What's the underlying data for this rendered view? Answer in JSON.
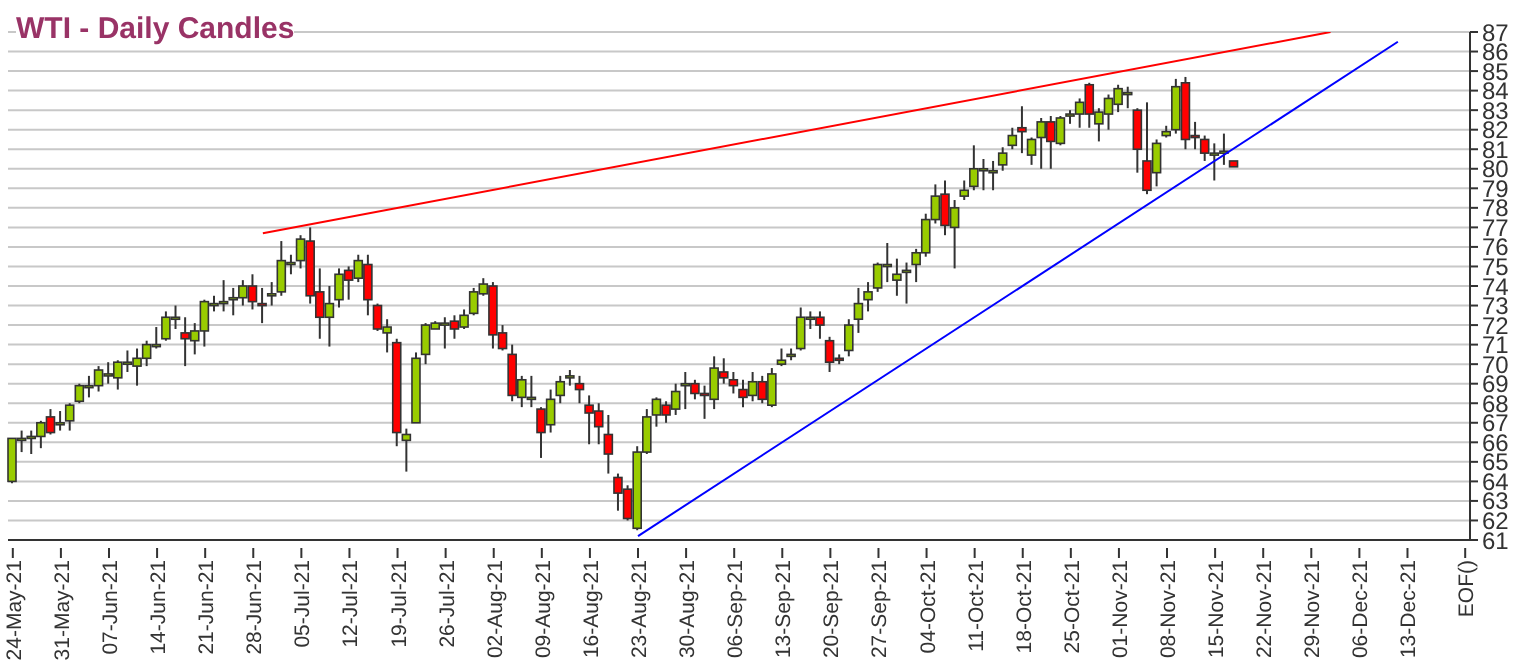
{
  "chart_data": {
    "type": "candlestick",
    "title": "WTI - Daily Candles",
    "categories": [
      "24-May-21",
      null,
      null,
      null,
      null,
      "31-May-21",
      null,
      null,
      null,
      null,
      "07-Jun-21",
      null,
      null,
      null,
      null,
      "14-Jun-21",
      null,
      null,
      null,
      null,
      "21-Jun-21",
      null,
      null,
      null,
      null,
      "28-Jun-21",
      null,
      null,
      null,
      null,
      "05-Jul-21",
      null,
      null,
      null,
      null,
      "12-Jul-21",
      null,
      null,
      null,
      null,
      "19-Jul-21",
      null,
      null,
      null,
      null,
      "26-Jul-21",
      null,
      null,
      null,
      null,
      "02-Aug-21",
      null,
      null,
      null,
      null,
      "09-Aug-21",
      null,
      null,
      null,
      null,
      "16-Aug-21",
      null,
      null,
      null,
      null,
      "23-Aug-21",
      null,
      null,
      null,
      null,
      "30-Aug-21",
      null,
      null,
      null,
      null,
      "06-Sep-21",
      null,
      null,
      null,
      null,
      "13-Sep-21",
      null,
      null,
      null,
      null,
      "20-Sep-21",
      null,
      null,
      null,
      null,
      "27-Sep-21",
      null,
      null,
      null,
      null,
      "04-Oct-21",
      null,
      null,
      null,
      null,
      "11-Oct-21",
      null,
      null,
      null,
      null,
      "18-Oct-21",
      null,
      null,
      null,
      null,
      "25-Oct-21",
      null,
      null,
      null,
      null,
      "01-Nov-21",
      null,
      null,
      null,
      null,
      "08-Nov-21",
      null,
      null,
      null,
      null,
      "15-Nov-21",
      null,
      null,
      null,
      null,
      "22-Nov-21",
      null,
      null,
      null,
      null,
      "29-Nov-21",
      null,
      null,
      null,
      null,
      "06-Dec-21",
      null,
      null,
      null,
      null,
      "13-Dec-21",
      null,
      null,
      null,
      null,
      null,
      "EOF()"
    ],
    "ohlc": [
      [
        64.0,
        66.2,
        63.9,
        66.2
      ],
      [
        66.2,
        66.6,
        65.5,
        66.2
      ],
      [
        66.2,
        66.6,
        65.4,
        66.3
      ],
      [
        66.3,
        67.1,
        65.7,
        67.0
      ],
      [
        67.3,
        67.7,
        66.4,
        66.5
      ],
      [
        66.9,
        67.6,
        66.6,
        67.0
      ],
      [
        67.1,
        68.0,
        66.6,
        67.9
      ],
      [
        68.1,
        69.0,
        68.0,
        68.9
      ],
      [
        68.9,
        69.4,
        68.3,
        68.9
      ],
      [
        68.9,
        69.9,
        68.6,
        69.7
      ],
      [
        69.4,
        70.1,
        69.0,
        69.5
      ],
      [
        69.3,
        70.2,
        68.7,
        70.1
      ],
      [
        70.1,
        70.7,
        69.6,
        70.1
      ],
      [
        69.9,
        70.8,
        68.9,
        70.3
      ],
      [
        70.3,
        71.2,
        69.9,
        71.0
      ],
      [
        71.0,
        71.9,
        70.8,
        71.0
      ],
      [
        71.3,
        72.7,
        71.2,
        72.4
      ],
      [
        72.3,
        73.0,
        71.8,
        72.4
      ],
      [
        71.6,
        72.4,
        69.9,
        71.3
      ],
      [
        71.2,
        72.1,
        70.5,
        71.7
      ],
      [
        71.7,
        73.3,
        70.9,
        73.2
      ],
      [
        73.1,
        73.5,
        72.7,
        73.1
      ],
      [
        73.1,
        74.3,
        72.7,
        73.2
      ],
      [
        73.3,
        73.9,
        72.5,
        73.4
      ],
      [
        73.4,
        74.3,
        73.0,
        74.0
      ],
      [
        74.0,
        74.6,
        72.8,
        73.2
      ],
      [
        73.1,
        73.9,
        72.1,
        73.0
      ],
      [
        73.6,
        74.2,
        73.0,
        73.6
      ],
      [
        73.7,
        76.3,
        73.5,
        75.3
      ],
      [
        75.2,
        75.6,
        74.6,
        75.2
      ],
      [
        75.3,
        76.6,
        74.9,
        76.4
      ],
      [
        76.3,
        77.0,
        73.1,
        73.5
      ],
      [
        73.7,
        74.9,
        71.3,
        72.4
      ],
      [
        72.4,
        74.0,
        70.9,
        73.1
      ],
      [
        73.3,
        74.9,
        72.9,
        74.6
      ],
      [
        74.8,
        75.0,
        73.3,
        74.3
      ],
      [
        74.4,
        75.6,
        74.2,
        75.3
      ],
      [
        75.1,
        75.6,
        72.5,
        73.3
      ],
      [
        73.0,
        73.1,
        71.7,
        71.8
      ],
      [
        71.6,
        72.3,
        70.6,
        71.9
      ],
      [
        71.1,
        71.3,
        65.8,
        66.5
      ],
      [
        66.1,
        66.7,
        64.5,
        66.4
      ],
      [
        67.0,
        70.6,
        67.0,
        70.3
      ],
      [
        70.5,
        72.1,
        70.0,
        72.0
      ],
      [
        71.8,
        72.2,
        71.8,
        72.1
      ],
      [
        72.1,
        72.4,
        70.8,
        72.1
      ],
      [
        72.2,
        72.5,
        71.3,
        71.8
      ],
      [
        71.9,
        72.8,
        71.8,
        72.5
      ],
      [
        72.6,
        73.9,
        72.5,
        73.7
      ],
      [
        73.6,
        74.4,
        73.5,
        74.1
      ],
      [
        74.0,
        74.2,
        70.8,
        71.5
      ],
      [
        71.6,
        72.0,
        70.7,
        70.8
      ],
      [
        70.5,
        71.0,
        68.1,
        68.4
      ],
      [
        68.3,
        69.4,
        67.8,
        69.2
      ],
      [
        68.3,
        69.4,
        67.8,
        68.3
      ],
      [
        67.7,
        67.8,
        65.2,
        66.5
      ],
      [
        66.9,
        68.7,
        66.5,
        68.2
      ],
      [
        68.4,
        69.4,
        68.0,
        69.1
      ],
      [
        69.3,
        69.7,
        68.9,
        69.4
      ],
      [
        69.0,
        69.4,
        68.0,
        68.7
      ],
      [
        67.9,
        68.4,
        65.9,
        67.5
      ],
      [
        67.6,
        68.0,
        65.9,
        66.8
      ],
      [
        66.4,
        67.4,
        64.4,
        65.4
      ],
      [
        64.2,
        64.4,
        62.5,
        63.4
      ],
      [
        63.6,
        63.8,
        62.0,
        62.1
      ],
      [
        61.6,
        65.8,
        61.5,
        65.5
      ],
      [
        65.5,
        67.7,
        65.4,
        67.3
      ],
      [
        67.4,
        68.3,
        66.8,
        68.2
      ],
      [
        67.9,
        68.1,
        67.0,
        67.4
      ],
      [
        67.7,
        69.0,
        67.4,
        68.6
      ],
      [
        69.0,
        69.6,
        67.7,
        69.0
      ],
      [
        69.0,
        69.2,
        68.2,
        68.5
      ],
      [
        68.5,
        68.9,
        67.2,
        68.4
      ],
      [
        68.2,
        70.4,
        67.7,
        69.8
      ],
      [
        69.6,
        70.3,
        69.0,
        69.3
      ],
      [
        69.2,
        69.6,
        68.5,
        68.9
      ],
      [
        68.7,
        69.2,
        67.8,
        68.3
      ],
      [
        68.4,
        69.6,
        68.1,
        69.1
      ],
      [
        69.1,
        69.4,
        68.0,
        68.2
      ],
      [
        67.9,
        69.8,
        67.8,
        69.5
      ],
      [
        70.0,
        70.8,
        69.9,
        70.2
      ],
      [
        70.5,
        70.8,
        70.2,
        70.5
      ],
      [
        70.8,
        72.9,
        70.7,
        72.4
      ],
      [
        72.4,
        72.7,
        71.8,
        72.4
      ],
      [
        72.4,
        72.7,
        71.3,
        72.0
      ],
      [
        71.2,
        71.4,
        69.6,
        70.1
      ],
      [
        70.3,
        70.5,
        70.0,
        70.2
      ],
      [
        70.7,
        72.3,
        70.4,
        72.0
      ],
      [
        72.3,
        73.9,
        71.6,
        73.1
      ],
      [
        73.3,
        74.2,
        72.7,
        73.7
      ],
      [
        73.9,
        75.2,
        73.7,
        75.1
      ],
      [
        75.1,
        76.2,
        74.2,
        75.1
      ],
      [
        74.3,
        75.4,
        73.5,
        74.6
      ],
      [
        74.8,
        75.2,
        73.1,
        74.8
      ],
      [
        75.1,
        75.9,
        74.2,
        75.7
      ],
      [
        75.7,
        77.7,
        75.5,
        77.4
      ],
      [
        77.4,
        79.2,
        77.2,
        78.6
      ],
      [
        78.7,
        79.4,
        76.6,
        77.1
      ],
      [
        77.0,
        78.4,
        74.9,
        78.0
      ],
      [
        78.6,
        79.4,
        78.4,
        78.9
      ],
      [
        79.1,
        81.2,
        78.9,
        80.0
      ],
      [
        80.0,
        80.5,
        78.9,
        80.0
      ],
      [
        79.9,
        80.4,
        78.9,
        79.9
      ],
      [
        80.2,
        81.1,
        79.9,
        80.8
      ],
      [
        81.2,
        82.1,
        81.0,
        81.7
      ],
      [
        82.1,
        83.2,
        80.8,
        81.9
      ],
      [
        80.7,
        81.6,
        80.2,
        81.5
      ],
      [
        81.6,
        82.6,
        80.0,
        82.4
      ],
      [
        82.4,
        82.7,
        80.0,
        81.4
      ],
      [
        81.3,
        82.7,
        81.2,
        82.6
      ],
      [
        82.8,
        83.0,
        82.3,
        82.8
      ],
      [
        82.8,
        83.6,
        82.1,
        83.4
      ],
      [
        84.3,
        84.4,
        82.1,
        82.8
      ],
      [
        82.3,
        83.1,
        81.4,
        82.9
      ],
      [
        82.8,
        83.8,
        82.0,
        83.6
      ],
      [
        83.3,
        84.3,
        82.9,
        84.1
      ],
      [
        83.9,
        84.2,
        83.1,
        83.9
      ],
      [
        83.0,
        83.1,
        79.8,
        81.0
      ],
      [
        80.4,
        83.4,
        78.7,
        78.9
      ],
      [
        79.8,
        81.5,
        79.1,
        81.3
      ],
      [
        81.7,
        82.2,
        81.6,
        81.9
      ],
      [
        82.0,
        84.6,
        81.8,
        84.2
      ],
      [
        84.4,
        84.7,
        81.0,
        81.5
      ],
      [
        81.7,
        82.4,
        81.0,
        81.6
      ],
      [
        81.5,
        81.7,
        80.4,
        80.8
      ],
      [
        80.8,
        81.3,
        79.4,
        80.8
      ],
      [
        80.8,
        81.8,
        80.2,
        80.9
      ],
      [
        80.4,
        80.4,
        80.1,
        80.1
      ],
      null,
      null,
      null,
      null,
      null,
      null,
      null,
      null,
      null,
      null,
      null,
      null,
      null,
      null,
      null,
      null,
      null,
      null,
      null,
      null,
      null,
      null,
      null,
      null
    ],
    "series": [
      {
        "type": "line",
        "color": "#ff0000",
        "values": [
          null,
          null,
          null,
          null,
          null,
          null,
          null,
          null,
          null,
          null,
          null,
          null,
          null,
          null,
          null,
          null,
          null,
          null,
          null,
          null,
          null,
          null,
          null,
          null,
          null,
          null,
          76.7,
          null,
          null,
          null,
          null,
          null,
          null,
          null,
          null,
          null,
          null,
          null,
          null,
          null,
          null,
          null,
          null,
          null,
          null,
          null,
          null,
          null,
          null,
          null,
          null,
          null,
          null,
          null,
          null,
          null,
          null,
          null,
          null,
          null,
          null,
          null,
          null,
          null,
          null,
          null,
          null,
          null,
          null,
          null,
          null,
          null,
          null,
          null,
          null,
          null,
          null,
          null,
          null,
          null,
          null,
          null,
          null,
          null,
          null,
          null,
          null,
          null,
          null,
          null,
          null,
          null,
          null,
          null,
          null,
          null,
          null,
          null,
          null,
          null,
          null,
          null,
          null,
          null,
          null,
          null,
          null,
          null,
          null,
          null,
          null,
          null,
          null,
          null,
          null,
          null,
          null,
          null,
          null,
          null,
          null,
          null,
          null,
          null,
          null,
          null,
          null,
          null,
          null,
          null,
          null,
          null,
          null,
          null,
          null,
          null,
          null,
          87.0,
          null,
          null,
          null,
          null,
          null,
          null,
          null,
          null,
          null,
          null,
          null,
          null,
          null,
          null
        ]
      },
      {
        "type": "line",
        "color": "#0000ff",
        "values": [
          null,
          null,
          null,
          null,
          null,
          null,
          null,
          null,
          null,
          null,
          null,
          null,
          null,
          null,
          null,
          null,
          null,
          null,
          null,
          null,
          null,
          null,
          null,
          null,
          null,
          null,
          null,
          null,
          null,
          null,
          null,
          null,
          null,
          null,
          null,
          null,
          null,
          null,
          null,
          null,
          null,
          null,
          null,
          null,
          null,
          null,
          null,
          null,
          null,
          null,
          null,
          null,
          null,
          null,
          null,
          null,
          null,
          null,
          null,
          null,
          null,
          null,
          null,
          null,
          null,
          61.2,
          null,
          null,
          null,
          null,
          null,
          null,
          null,
          null,
          null,
          null,
          null,
          null,
          null,
          null,
          null,
          null,
          null,
          null,
          null,
          null,
          null,
          null,
          null,
          null,
          null,
          null,
          null,
          null,
          null,
          null,
          null,
          null,
          null,
          null,
          null,
          null,
          null,
          null,
          null,
          null,
          null,
          null,
          null,
          null,
          null,
          null,
          null,
          null,
          null,
          null,
          null,
          null,
          null,
          null,
          null,
          null,
          null,
          null,
          null,
          null,
          null,
          null,
          null,
          null,
          null,
          null,
          null,
          null,
          null,
          null,
          null,
          null,
          null,
          null,
          null,
          null,
          null,
          null,
          86.5,
          null,
          null,
          null,
          null,
          null,
          null,
          null
        ]
      }
    ],
    "ylim": [
      61,
      87
    ],
    "yticks": [
      61,
      62,
      63,
      64,
      65,
      66,
      67,
      68,
      69,
      70,
      71,
      72,
      73,
      74,
      75,
      76,
      77,
      78,
      79,
      80,
      81,
      82,
      83,
      84,
      85,
      86,
      87
    ],
    "grid": "y"
  }
}
